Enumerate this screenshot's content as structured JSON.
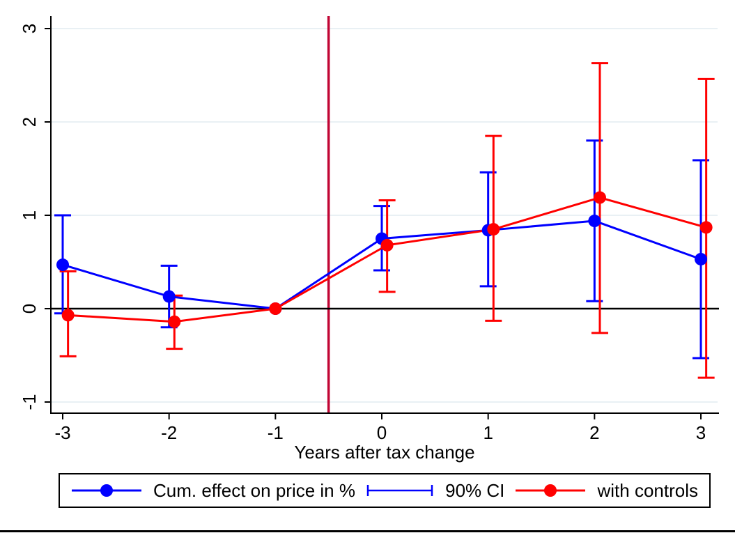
{
  "chart_data": {
    "type": "line",
    "title": "",
    "xlabel": "Years after tax change",
    "ylabel": "",
    "x_ticks": [
      -3,
      -2,
      -1,
      0,
      1,
      2,
      3
    ],
    "x_tick_labels": [
      "-3",
      "-2",
      "-1",
      "0",
      "1",
      "2",
      "3"
    ],
    "y_ticks": [
      -1,
      0,
      1,
      2,
      3
    ],
    "y_tick_labels": [
      "-1",
      "0",
      "1",
      "2",
      "3"
    ],
    "xlim": [
      -3.11,
      3.17
    ],
    "ylim": [
      -1.12,
      3.13
    ],
    "grid": "horizontal-only",
    "reference_lines": {
      "vertical_x": -0.5,
      "horizontal_y": 0
    },
    "colors": {
      "series_blue": "#0000ff",
      "series_red": "#ff0000",
      "vline": "#c10534",
      "zero_line": "#000000",
      "grid": "#e9f0f4",
      "axis": "#000000",
      "background": "#ffffff"
    },
    "series": [
      {
        "name": "Cum. effect on price in %",
        "color": "#0000ff",
        "marker": "circle",
        "ci_label": "90% CI",
        "x": [
          -3,
          -2,
          -1,
          0,
          1,
          2,
          3
        ],
        "y": [
          0.47,
          0.13,
          0,
          0.75,
          0.84,
          0.94,
          0.53
        ],
        "ci_low": [
          -0.05,
          -0.2,
          0,
          0.41,
          0.24,
          0.08,
          -0.53
        ],
        "ci_high": [
          1.0,
          0.46,
          0,
          1.1,
          1.46,
          1.8,
          1.59
        ]
      },
      {
        "name": "with controls",
        "color": "#ff0000",
        "marker": "circle",
        "ci_label": "90% CI",
        "x": [
          -2.95,
          -1.95,
          -1,
          0.05,
          1.05,
          2.05,
          3.05
        ],
        "y": [
          -0.07,
          -0.14,
          0,
          0.68,
          0.85,
          1.19,
          0.87
        ],
        "ci_low": [
          -0.51,
          -0.43,
          0,
          0.18,
          -0.13,
          -0.26,
          -0.74
        ],
        "ci_high": [
          0.4,
          0.14,
          0,
          1.16,
          1.85,
          2.63,
          2.46
        ]
      }
    ]
  },
  "legend": {
    "position": "bottom",
    "items": [
      {
        "label": "Cum. effect on price in %",
        "sample": "line-with-circle-marker",
        "color": "#0000ff"
      },
      {
        "label": "90% CI",
        "sample": "horizontal-error-bar",
        "color": "#0000ff"
      },
      {
        "label": "with controls",
        "sample": "line-with-circle-marker",
        "color": "#ff0000"
      }
    ]
  }
}
